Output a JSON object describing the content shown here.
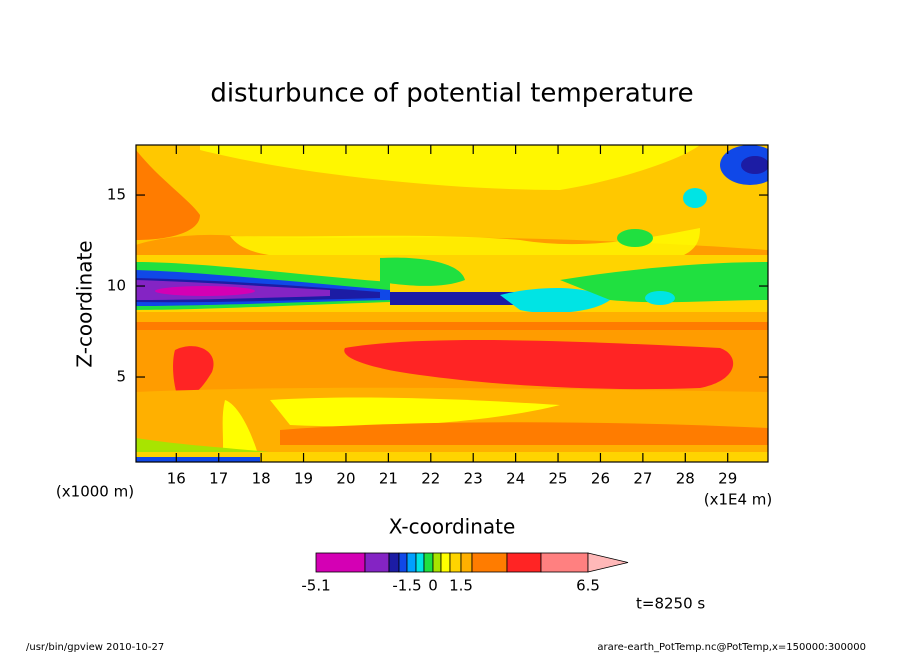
{
  "chart_data": {
    "type": "contour",
    "title": "disturbunce of potential temperature",
    "x_label": "X-coordinate",
    "y_label": "Z-coordinate",
    "x_unit": "(x1E4 m)",
    "y_unit": "(x1000 m)",
    "xlim": [
      15.05,
      29.95
    ],
    "xticks": [
      16,
      17,
      18,
      19,
      20,
      21,
      22,
      23,
      24,
      25,
      26,
      27,
      28,
      29
    ],
    "ylim": [
      0.33,
      17.75
    ],
    "yticks": [
      5,
      10,
      15
    ],
    "colorbar": {
      "colors": [
        "#d400b4",
        "#8424c4",
        "#1c1ca4",
        "#1048e8",
        "#00a0ff",
        "#00e4e4",
        "#20e040",
        "#a8e400",
        "#ffff00",
        "#ffd400",
        "#ffb000",
        "#ff7c00",
        "#ff2424",
        "#ff8080",
        "#ffb8b8"
      ],
      "ticks": [
        -5.1,
        -1.5,
        0,
        1.5,
        6.5
      ]
    },
    "time_label": "t=8250 s",
    "footer_left": "/usr/bin/gpview  2010-10-27",
    "footer_right": "arare-earth_PotTemp.nc@PotTemp,x=150000:300000"
  }
}
